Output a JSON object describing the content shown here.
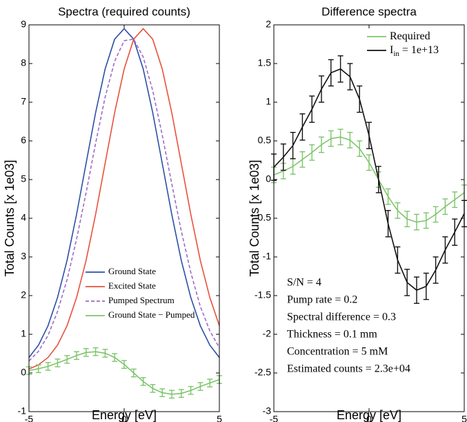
{
  "chart_data": [
    {
      "type": "line",
      "title": "Spectra (required counts)",
      "xlabel": "Energy [eV]",
      "ylabel": "Total Counts [x 1e03]",
      "xlim": [
        -5,
        5
      ],
      "ylim": [
        -1,
        9
      ],
      "xticks": [
        -5,
        0,
        5
      ],
      "yticks": [
        -1,
        0,
        1,
        2,
        3,
        4,
        5,
        6,
        7,
        8,
        9
      ],
      "legend": "lower right",
      "x": [
        -5,
        -4.5,
        -4,
        -3.5,
        -3,
        -2.5,
        -2,
        -1.5,
        -1,
        -0.5,
        0,
        0.5,
        1,
        1.5,
        2,
        2.5,
        3,
        3.5,
        4,
        4.5,
        5
      ],
      "series": [
        {
          "name": "Ground State",
          "color": "#2b4fa6",
          "values": [
            0.4,
            0.72,
            1.22,
            1.95,
            2.91,
            4.1,
            5.42,
            6.73,
            7.86,
            8.63,
            8.9,
            8.63,
            7.86,
            6.73,
            5.42,
            4.1,
            2.91,
            1.95,
            1.22,
            0.72,
            0.4
          ]
        },
        {
          "name": "Excited State",
          "color": "#e8503a",
          "values": [
            0.1,
            0.21,
            0.4,
            0.72,
            1.22,
            1.95,
            2.91,
            4.1,
            5.42,
            6.73,
            7.86,
            8.63,
            8.9,
            8.63,
            7.86,
            6.73,
            5.42,
            4.1,
            2.91,
            1.95,
            1.22
          ]
        },
        {
          "name": "Pumped Spectrum",
          "color": "#9a6bc8",
          "dashed": true,
          "values": [
            0.31,
            0.56,
            0.97,
            1.59,
            2.41,
            3.46,
            4.66,
            5.94,
            7.13,
            8.06,
            8.59,
            8.63,
            8.17,
            7.3,
            6.15,
            4.89,
            3.67,
            2.6,
            1.72,
            1.09,
            0.65
          ]
        },
        {
          "name": "Ground State − Pumped",
          "color": "#7cc46a",
          "values": [
            0.06,
            0.11,
            0.17,
            0.26,
            0.35,
            0.45,
            0.53,
            0.55,
            0.51,
            0.4,
            0.22,
            0,
            -0.22,
            -0.4,
            -0.51,
            -0.55,
            -0.53,
            -0.45,
            -0.35,
            -0.26,
            -0.17
          ],
          "errors": [
            0.1,
            0.1,
            0.1,
            0.1,
            0.1,
            0.1,
            0.1,
            0.1,
            0.1,
            0.1,
            0.1,
            0.1,
            0.1,
            0.1,
            0.1,
            0.1,
            0.1,
            0.1,
            0.1,
            0.1,
            0.1
          ]
        }
      ]
    },
    {
      "type": "line",
      "title": "Difference spectra",
      "xlabel": "Energy [eV]",
      "ylabel": "Total Counts [x 1e03]",
      "xlim": [
        -5,
        5
      ],
      "ylim": [
        -3,
        2
      ],
      "xticks": [
        -5,
        0,
        5
      ],
      "yticks": [
        -3,
        -2.5,
        -2,
        -1.5,
        -1,
        -0.5,
        0,
        0.5,
        1,
        1.5,
        2
      ],
      "legend": "upper right",
      "x": [
        -5,
        -4.5,
        -4,
        -3.5,
        -3,
        -2.5,
        -2,
        -1.5,
        -1,
        -0.5,
        0,
        0.5,
        1,
        1.5,
        2,
        2.5,
        3,
        3.5,
        4,
        4.5,
        5
      ],
      "series": [
        {
          "name": "Required",
          "color": "#7cc46a",
          "values": [
            0.06,
            0.11,
            0.17,
            0.26,
            0.35,
            0.45,
            0.53,
            0.55,
            0.51,
            0.4,
            0.22,
            0,
            -0.22,
            -0.4,
            -0.51,
            -0.55,
            -0.53,
            -0.45,
            -0.35,
            -0.26,
            -0.17
          ],
          "errors": [
            0.1,
            0.1,
            0.1,
            0.1,
            0.1,
            0.1,
            0.1,
            0.1,
            0.1,
            0.1,
            0.1,
            0.1,
            0.1,
            0.1,
            0.1,
            0.1,
            0.1,
            0.1,
            0.1,
            0.1,
            0.1
          ]
        },
        {
          "name": "I",
          "name_subscript": "in",
          "name_suffix": " = 1e+13",
          "color": "#111111",
          "values": [
            0.16,
            0.29,
            0.44,
            0.68,
            0.91,
            1.17,
            1.38,
            1.43,
            1.33,
            1.04,
            0.57,
            0,
            -0.57,
            -1.04,
            -1.33,
            -1.43,
            -1.38,
            -1.17,
            -0.91,
            -0.68,
            -0.44
          ],
          "errors": [
            0.17,
            0.17,
            0.17,
            0.17,
            0.17,
            0.17,
            0.17,
            0.17,
            0.17,
            0.17,
            0.17,
            0.17,
            0.17,
            0.17,
            0.17,
            0.17,
            0.17,
            0.17,
            0.17,
            0.17,
            0.17
          ]
        }
      ],
      "annotation": [
        "S/N = 4",
        "Pump rate = 0.2",
        "Spectral difference = 0.3",
        "Thickness = 0.1 mm",
        "Concentration = 5 mM",
        "Estimated counts = 2.3e+04"
      ]
    }
  ]
}
